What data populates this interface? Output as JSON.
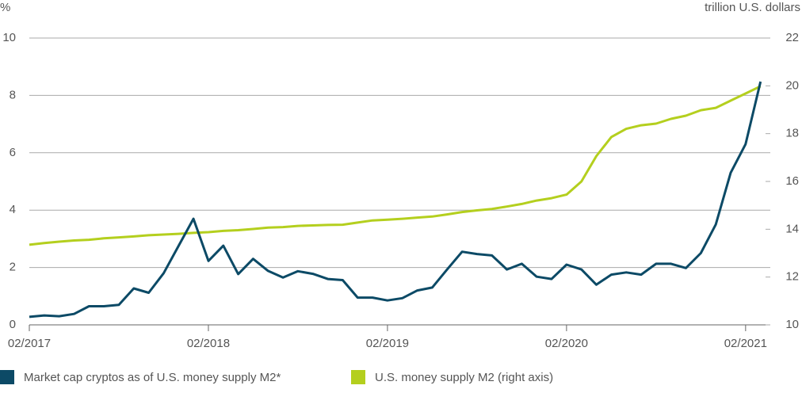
{
  "chart_data": {
    "type": "line",
    "y_label": "%",
    "y2_label": "trillion U.S. dollars",
    "categories": [
      "02/2017",
      null,
      null,
      null,
      null,
      null,
      null,
      null,
      null,
      null,
      null,
      null,
      "02/2018",
      null,
      null,
      null,
      null,
      null,
      null,
      null,
      null,
      null,
      null,
      null,
      "02/2019",
      null,
      null,
      null,
      null,
      null,
      null,
      null,
      null,
      null,
      null,
      null,
      "02/2020",
      null,
      null,
      null,
      null,
      null,
      null,
      null,
      null,
      null,
      null,
      null,
      "02/2021",
      null
    ],
    "series": [
      {
        "name": "Market cap cryptos as of U.S. money supply M2*",
        "color": "#0c4a66",
        "axis": "y",
        "values": [
          0.28,
          0.33,
          0.3,
          0.38,
          0.65,
          0.65,
          0.7,
          1.27,
          1.12,
          1.8,
          2.75,
          3.7,
          2.23,
          2.76,
          1.77,
          2.3,
          1.88,
          1.65,
          1.87,
          1.78,
          1.6,
          1.56,
          0.95,
          0.95,
          0.85,
          0.93,
          1.2,
          1.3,
          1.93,
          2.55,
          2.47,
          2.42,
          1.93,
          2.13,
          1.68,
          1.6,
          2.1,
          1.93,
          1.4,
          1.75,
          1.83,
          1.75,
          2.13,
          2.13,
          1.98,
          2.5,
          3.5,
          5.3,
          6.3,
          8.48
        ]
      },
      {
        "name": "U.S. money supply M2 (right axis)",
        "color": "#b4cf1e",
        "axis": "y2",
        "values": [
          13.35,
          13.42,
          13.48,
          13.53,
          13.56,
          13.62,
          13.66,
          13.7,
          13.75,
          13.78,
          13.81,
          13.85,
          13.88,
          13.93,
          13.96,
          14.01,
          14.07,
          14.09,
          14.14,
          14.16,
          14.18,
          14.19,
          14.28,
          14.37,
          14.4,
          14.44,
          14.49,
          14.53,
          14.62,
          14.72,
          14.79,
          14.85,
          14.95,
          15.06,
          15.2,
          15.3,
          15.45,
          16.0,
          17.06,
          17.86,
          18.2,
          18.35,
          18.42,
          18.62,
          18.75,
          18.98,
          19.08,
          19.38,
          19.68,
          19.98
        ]
      }
    ],
    "ylim": [
      0,
      10
    ],
    "yticks": [
      0,
      2,
      4,
      6,
      8,
      10
    ],
    "y2lim": [
      10,
      22
    ],
    "y2ticks": [
      10,
      12,
      14,
      16,
      18,
      20,
      22
    ],
    "grid": true
  }
}
